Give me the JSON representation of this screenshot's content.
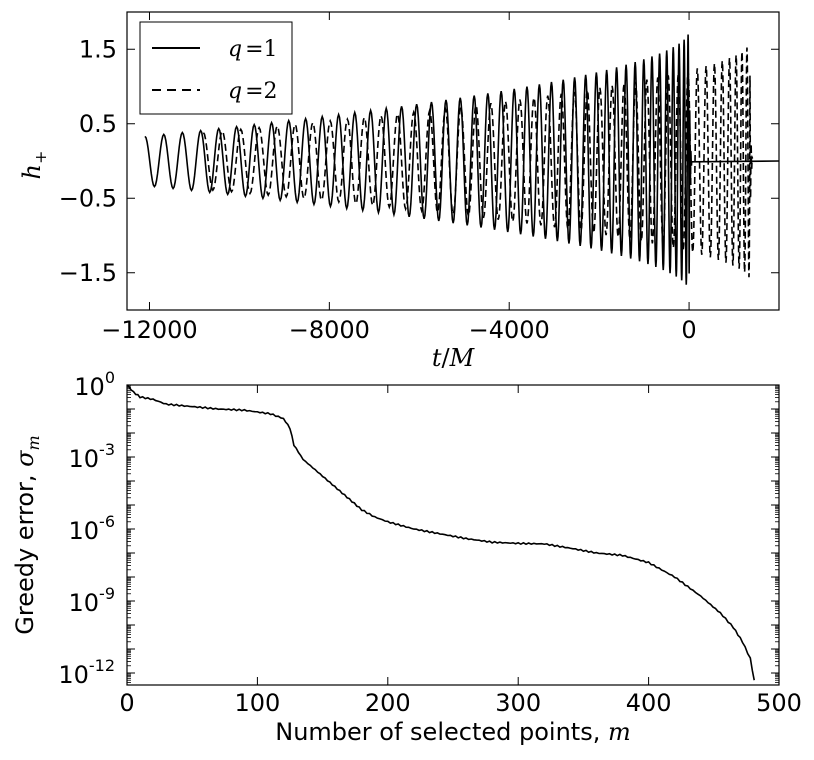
{
  "chart_data": [
    {
      "type": "line",
      "xlabel_var": "t",
      "xlabel_sep": "/",
      "xlabel_unit": "M",
      "ylabel_var": "h",
      "ylabel_sub": "+",
      "xlim": [
        -12500,
        2000
      ],
      "ylim": [
        -2.0,
        2.0
      ],
      "x_ticks": [
        -12000,
        -8000,
        -4000,
        0
      ],
      "x_tick_labels": [
        "−12000",
        "−8000",
        "−4000",
        "0"
      ],
      "y_ticks": [
        1.5,
        0.5,
        -0.5,
        -1.5
      ],
      "y_tick_labels": [
        "1.5",
        "0.5",
        "−0.5",
        "−1.5"
      ],
      "legend_position": "top-left",
      "series": [
        {
          "name": "q = 1",
          "name_var": "q",
          "name_eq": "=",
          "name_val": "1",
          "style": "solid",
          "t_start": -12100,
          "t_merger": 0,
          "t_end": 2000,
          "amp_start": 0.33,
          "amp_peak": 1.75,
          "period_start": 420,
          "period_end": 35
        },
        {
          "name": "q = 2",
          "name_var": "q",
          "name_eq": "=",
          "name_val": "2",
          "style": "dashed",
          "t_start": -10800,
          "t_merger": 1350,
          "t_end": 1400,
          "amp_start": 0.38,
          "amp_peak": 1.6,
          "period_start": 420,
          "period_end": 45
        }
      ]
    },
    {
      "type": "line",
      "xlabel_text": "Number of selected points, ",
      "xlabel_var": "m",
      "ylabel_text": "Greedy error, ",
      "ylabel_var": "σ",
      "ylabel_sub": "m",
      "xlim": [
        0,
        500
      ],
      "ylim_log10": [
        -12.5,
        0
      ],
      "y_scale": "log",
      "x_ticks": [
        0,
        100,
        200,
        300,
        400,
        500
      ],
      "x_tick_labels": [
        "0",
        "100",
        "200",
        "300",
        "400",
        "500"
      ],
      "y_ticks_log10": [
        0,
        -3,
        -6,
        -9,
        -12
      ],
      "y_tick_base": "10",
      "y_tick_exps": [
        "0",
        "-3",
        "-6",
        "-9",
        "-12"
      ],
      "series": [
        {
          "name": "",
          "style": "solid",
          "m": [
            0,
            5,
            10,
            20,
            30,
            50,
            70,
            90,
            110,
            120,
            125,
            128,
            135,
            150,
            165,
            180,
            190,
            200,
            220,
            240,
            260,
            280,
            300,
            320,
            340,
            360,
            380,
            400,
            420,
            440,
            455,
            465,
            472,
            478,
            481
          ],
          "log10_sigma": [
            0,
            -0.3,
            -0.5,
            -0.6,
            -0.8,
            -0.9,
            -1.0,
            -1.05,
            -1.2,
            -1.4,
            -1.8,
            -2.5,
            -3.1,
            -3.8,
            -4.5,
            -5.2,
            -5.5,
            -5.7,
            -6.0,
            -6.2,
            -6.4,
            -6.55,
            -6.6,
            -6.62,
            -6.8,
            -7.0,
            -7.1,
            -7.4,
            -8.0,
            -8.8,
            -9.5,
            -10.1,
            -10.7,
            -11.4,
            -12.3
          ]
        }
      ]
    }
  ]
}
